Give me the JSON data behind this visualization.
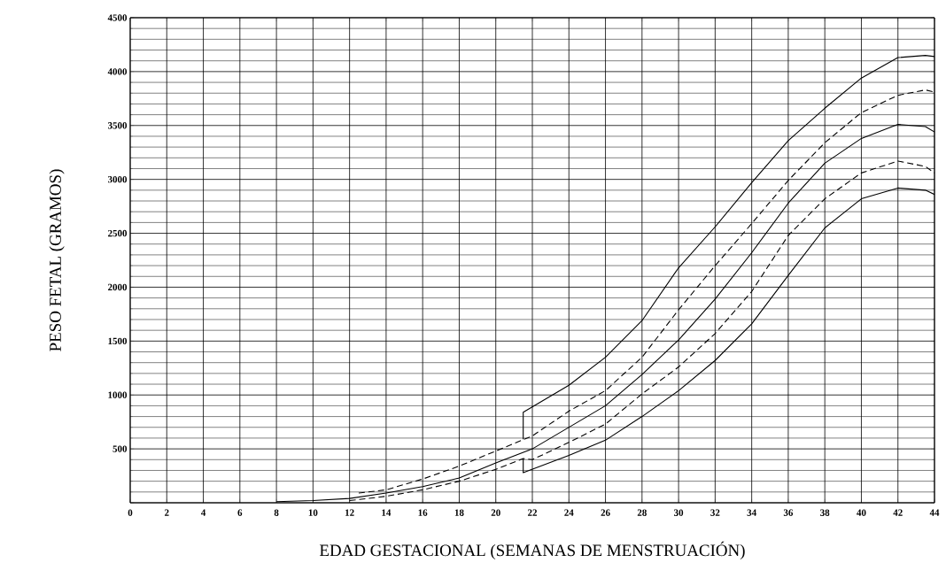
{
  "chart_data": {
    "type": "line",
    "xlabel": "EDAD GESTACIONAL (SEMANAS DE MENSTRUACIÓN)",
    "ylabel": "PESO FETAL (GRAMOS)",
    "xlim": [
      0,
      44
    ],
    "ylim": [
      0,
      4500
    ],
    "xticks": [
      0,
      2,
      4,
      6,
      8,
      10,
      12,
      14,
      16,
      18,
      20,
      22,
      24,
      26,
      28,
      30,
      32,
      34,
      36,
      38,
      40,
      42,
      44
    ],
    "yticks": [
      {
        "value": 0,
        "label": null
      },
      500,
      1000,
      1500,
      2000,
      2500,
      3000,
      3500,
      4000,
      4500
    ],
    "grid": true,
    "marker": "none",
    "series": [
      {
        "color": "#000000",
        "line_style": "solid",
        "x": [
          21.5,
          21.5,
          24,
          26,
          28,
          30,
          32,
          34,
          36,
          38,
          40,
          42,
          43.5,
          44
        ],
        "values": [
          590,
          840,
          1090,
          1350,
          1690,
          2180,
          2560,
          2970,
          3360,
          3660,
          3940,
          4130,
          4150,
          4140
        ]
      },
      {
        "color": "#000000",
        "line_style": "dashed",
        "x": [
          12.5,
          14,
          16,
          18,
          20,
          22,
          24,
          26,
          28,
          30,
          32,
          34,
          36,
          38,
          40,
          42,
          43.5,
          44
        ],
        "values": [
          90,
          120,
          220,
          340,
          480,
          620,
          850,
          1040,
          1350,
          1790,
          2200,
          2590,
          2990,
          3340,
          3620,
          3780,
          3830,
          3810
        ]
      },
      {
        "color": "#000000",
        "line_style": "solid",
        "x": [
          8,
          10,
          12,
          14,
          16,
          18,
          20,
          22,
          24,
          26,
          28,
          30,
          32,
          34,
          36,
          38,
          40,
          42,
          43.5,
          44
        ],
        "values": [
          10,
          20,
          40,
          90,
          150,
          230,
          370,
          500,
          700,
          900,
          1190,
          1510,
          1890,
          2320,
          2780,
          3150,
          3380,
          3510,
          3490,
          3440
        ]
      },
      {
        "color": "#000000",
        "line_style": "dashed",
        "x": [
          12,
          14,
          16,
          18,
          20,
          21.5,
          22,
          24,
          26,
          28,
          30,
          32,
          34,
          36,
          38,
          40,
          42,
          43.5,
          44
        ],
        "values": [
          20,
          60,
          120,
          200,
          310,
          410,
          400,
          560,
          730,
          1010,
          1260,
          1570,
          1960,
          2480,
          2820,
          3060,
          3170,
          3120,
          3060
        ]
      },
      {
        "color": "#000000",
        "line_style": "solid",
        "x": [
          21.5,
          21.5,
          24,
          26,
          28,
          30,
          32,
          34,
          36,
          38,
          40,
          42,
          43.5,
          44
        ],
        "values": [
          410,
          280,
          440,
          580,
          800,
          1040,
          1320,
          1660,
          2110,
          2550,
          2820,
          2920,
          2900,
          2860
        ]
      }
    ]
  }
}
